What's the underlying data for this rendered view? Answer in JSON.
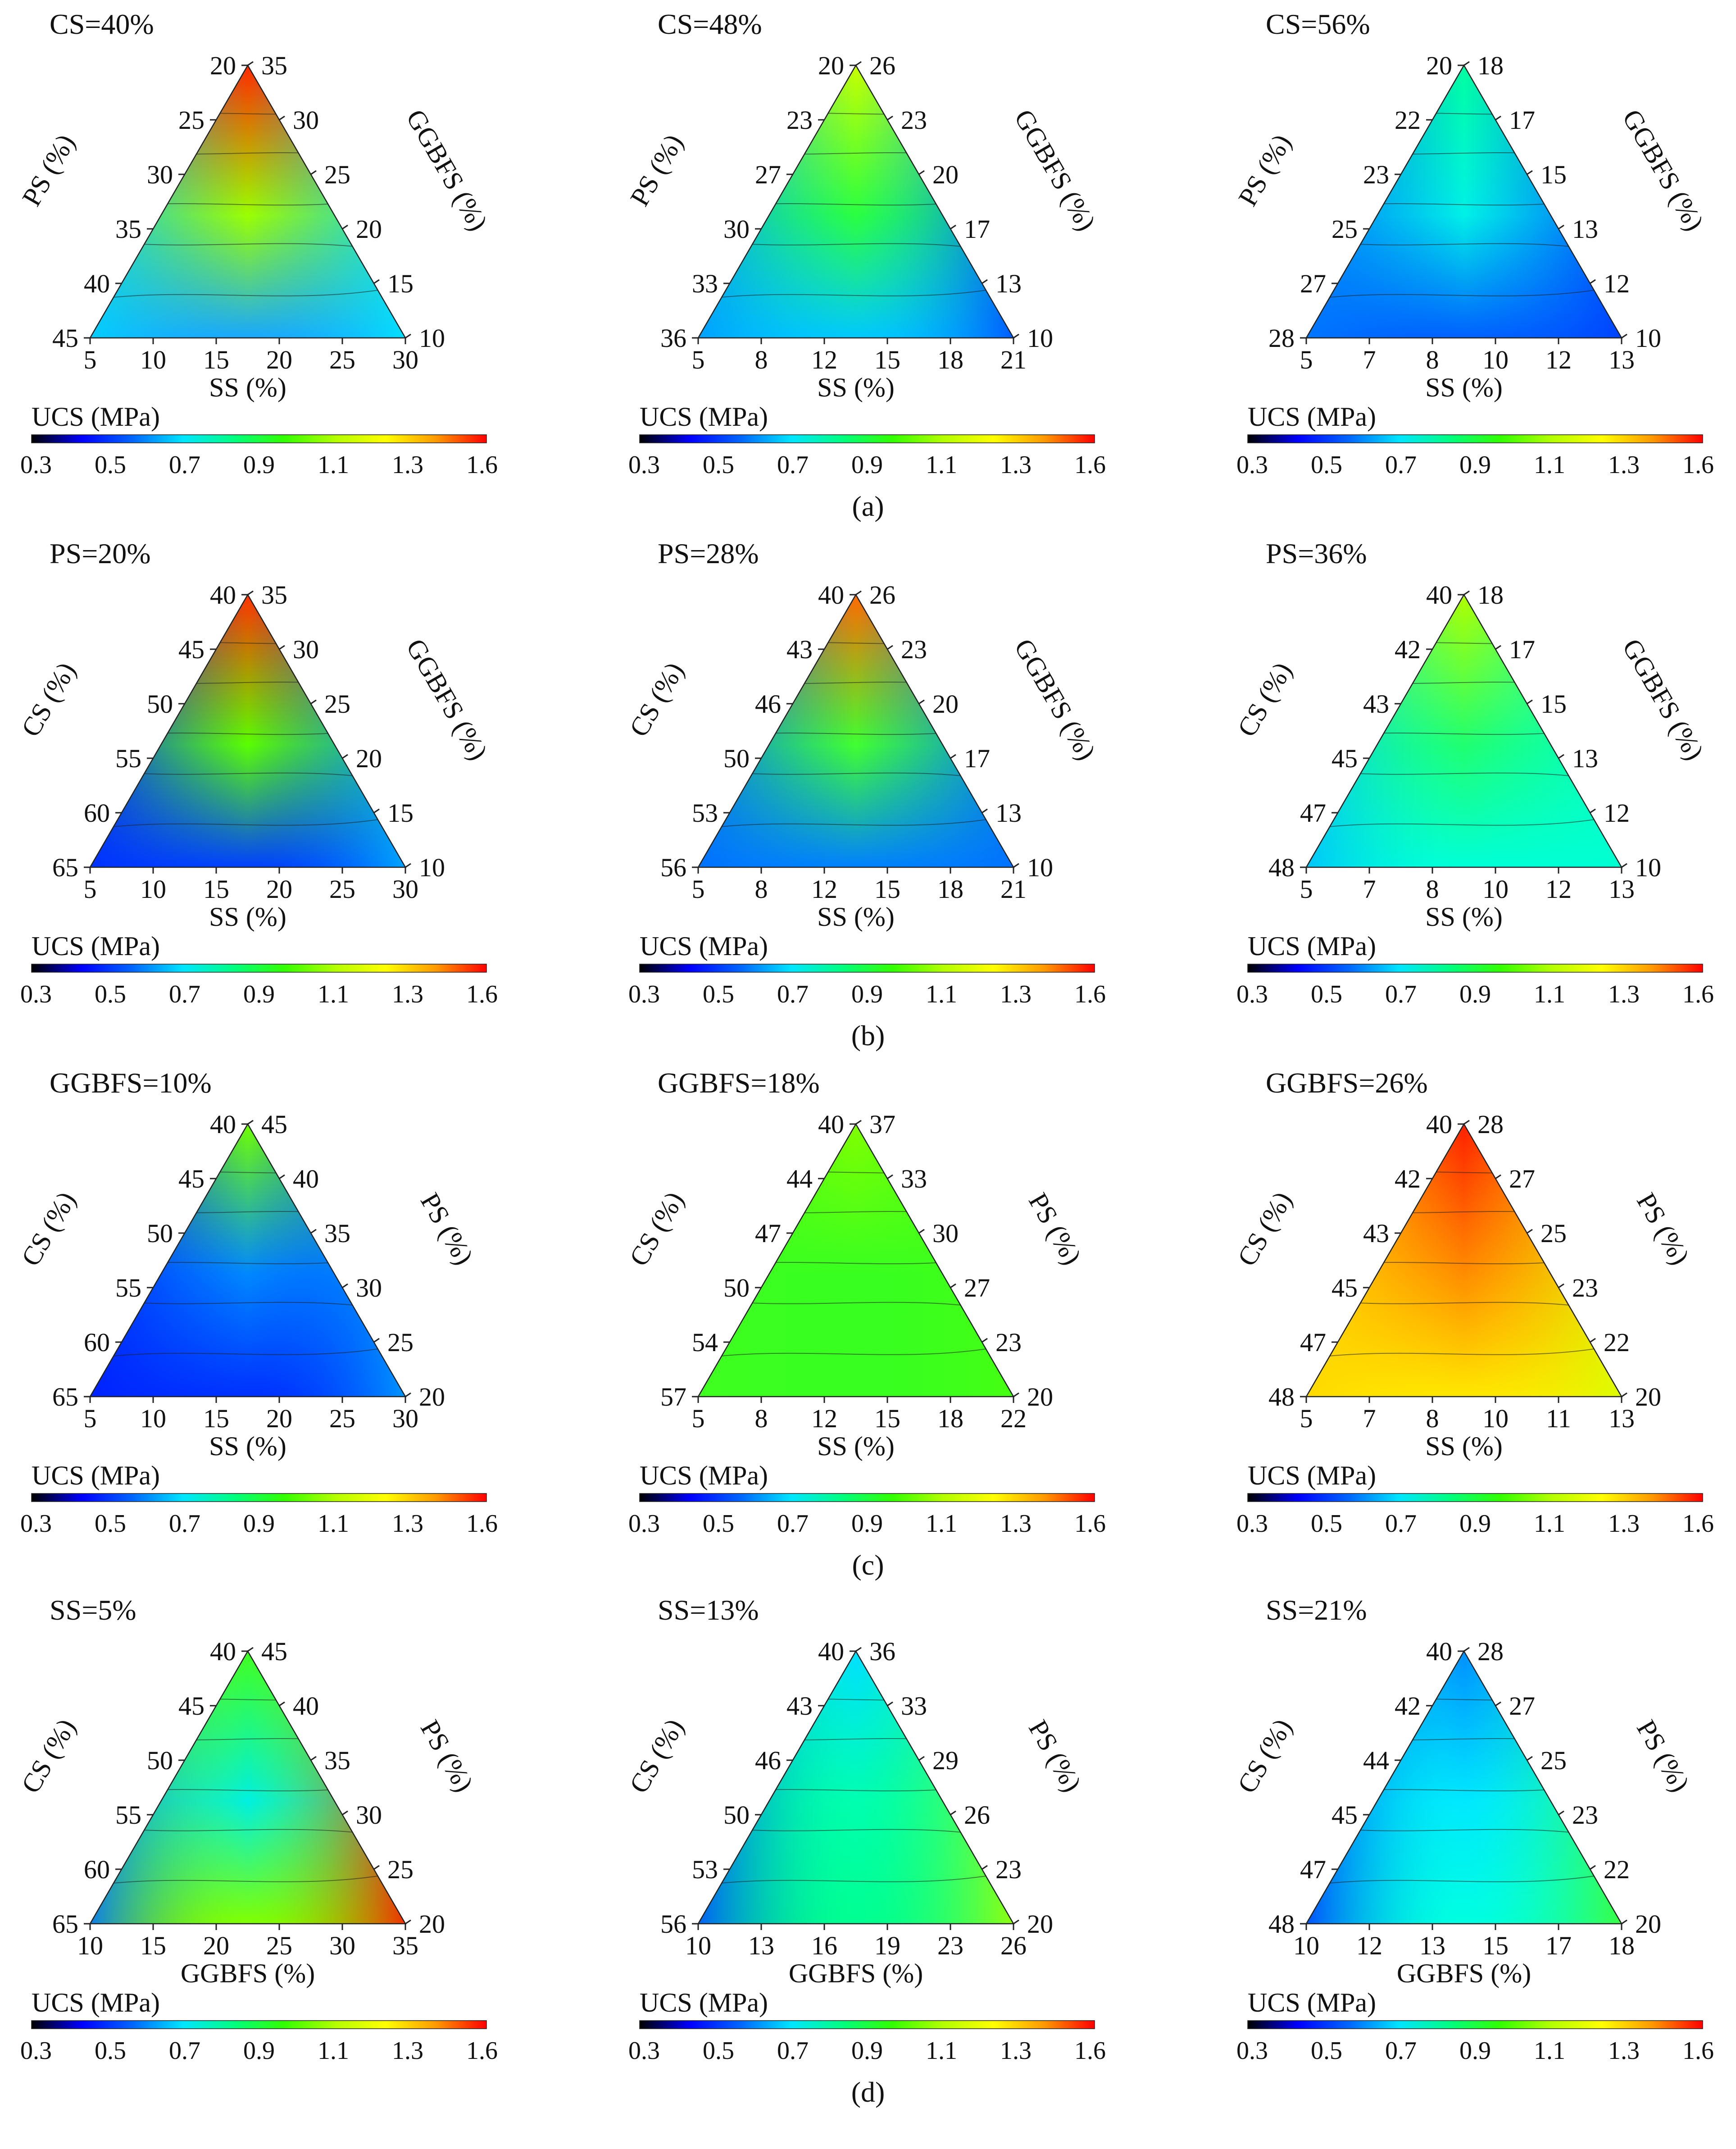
{
  "figure": {
    "colorbar": {
      "title": "UCS (MPa)",
      "ticks": [
        "0.3",
        "0.5",
        "0.7",
        "0.9",
        "1.1",
        "1.3",
        "1.6"
      ],
      "stops": [
        "#000000",
        "#0000ff",
        "#0066ff",
        "#00e5ff",
        "#00ff80",
        "#33ff00",
        "#b3ff00",
        "#ffff00",
        "#ff9900",
        "#ff0000"
      ]
    },
    "rows": [
      {
        "label": "(a)",
        "panels": [
          {
            "title": "CS=40%",
            "left_axis": "PS (%)",
            "right_axis": "GGBFS (%)",
            "bottom_axis": "SS (%)",
            "left_ticks": [
              "20",
              "25",
              "30",
              "35",
              "40",
              "45"
            ],
            "right_ticks": [
              "35",
              "30",
              "25",
              "20",
              "15",
              "10"
            ],
            "bottom_ticks": [
              "5",
              "10",
              "15",
              "20",
              "25",
              "30"
            ],
            "colors": {
              "apex": "#ff2a00",
              "mid": "#9bff00",
              "bl": "#00d2ff",
              "br": "#00e5ff",
              "bottom_mid": "#18a8ff"
            }
          },
          {
            "title": "CS=48%",
            "left_axis": "PS (%)",
            "right_axis": "GGBFS (%)",
            "bottom_axis": "SS (%)",
            "left_ticks": [
              "20",
              "23",
              "27",
              "30",
              "33",
              "36"
            ],
            "right_ticks": [
              "26",
              "23",
              "20",
              "17",
              "13",
              "10"
            ],
            "bottom_ticks": [
              "5",
              "8",
              "12",
              "15",
              "18",
              "21"
            ],
            "colors": {
              "apex": "#c8ff00",
              "mid": "#2aff40",
              "bl": "#009dff",
              "br": "#0050ff",
              "bottom_mid": "#00c8ff"
            }
          },
          {
            "title": "CS=56%",
            "left_axis": "PS (%)",
            "right_axis": "GGBFS (%)",
            "bottom_axis": "SS (%)",
            "left_ticks": [
              "20",
              "22",
              "23",
              "25",
              "27",
              "28"
            ],
            "right_ticks": [
              "18",
              "17",
              "15",
              "13",
              "12",
              "10"
            ],
            "bottom_ticks": [
              "5",
              "7",
              "8",
              "10",
              "12",
              "13"
            ],
            "colors": {
              "apex": "#00ffa0",
              "mid": "#00f0e8",
              "bl": "#0078ff",
              "br": "#0040ff",
              "bottom_mid": "#0060ff"
            }
          }
        ]
      },
      {
        "label": "(b)",
        "panels": [
          {
            "title": "PS=20%",
            "left_axis": "CS (%)",
            "right_axis": "GGBFS (%)",
            "bottom_axis": "SS (%)",
            "left_ticks": [
              "40",
              "45",
              "50",
              "55",
              "60",
              "65"
            ],
            "right_ticks": [
              "35",
              "30",
              "25",
              "20",
              "15",
              "10"
            ],
            "bottom_ticks": [
              "5",
              "10",
              "15",
              "20",
              "25",
              "30"
            ],
            "colors": {
              "apex": "#ff3300",
              "mid": "#5aff00",
              "bl": "#0030ff",
              "br": "#00b0ff",
              "bottom_mid": "#0040ff"
            }
          },
          {
            "title": "PS=28%",
            "left_axis": "CS (%)",
            "right_axis": "GGBFS (%)",
            "bottom_axis": "SS (%)",
            "left_ticks": [
              "40",
              "43",
              "46",
              "50",
              "53",
              "56"
            ],
            "right_ticks": [
              "26",
              "23",
              "20",
              "17",
              "13",
              "10"
            ],
            "bottom_ticks": [
              "5",
              "8",
              "12",
              "15",
              "18",
              "21"
            ],
            "colors": {
              "apex": "#ff6a00",
              "mid": "#40ff30",
              "bl": "#0070ff",
              "br": "#0070ff",
              "bottom_mid": "#0080ff"
            }
          },
          {
            "title": "PS=36%",
            "left_axis": "CS (%)",
            "right_axis": "GGBFS (%)",
            "bottom_axis": "SS (%)",
            "left_ticks": [
              "40",
              "42",
              "43",
              "45",
              "47",
              "48"
            ],
            "right_ticks": [
              "18",
              "17",
              "15",
              "13",
              "12",
              "10"
            ],
            "bottom_ticks": [
              "5",
              "7",
              "8",
              "10",
              "12",
              "13"
            ],
            "colors": {
              "apex": "#b0ff00",
              "mid": "#20ff70",
              "bl": "#00c0ff",
              "br": "#00ffd0",
              "bottom_mid": "#00ffd8"
            }
          }
        ]
      },
      {
        "label": "(c)",
        "panels": [
          {
            "title": "GGBFS=10%",
            "left_axis": "CS (%)",
            "right_axis": "PS (%)",
            "bottom_axis": "SS (%)",
            "left_ticks": [
              "40",
              "45",
              "50",
              "55",
              "60",
              "65"
            ],
            "right_ticks": [
              "45",
              "40",
              "35",
              "30",
              "25",
              "20"
            ],
            "bottom_ticks": [
              "5",
              "10",
              "15",
              "20",
              "25",
              "30"
            ],
            "colors": {
              "apex": "#70ff00",
              "mid": "#0088ff",
              "bl": "#0020ff",
              "br": "#00a0ff",
              "bottom_mid": "#0030ff"
            }
          },
          {
            "title": "GGBFS=18%",
            "left_axis": "CS (%)",
            "right_axis": "PS (%)",
            "bottom_axis": "SS (%)",
            "left_ticks": [
              "40",
              "44",
              "47",
              "50",
              "54",
              "57"
            ],
            "right_ticks": [
              "37",
              "33",
              "30",
              "27",
              "23",
              "20"
            ],
            "bottom_ticks": [
              "5",
              "8",
              "12",
              "15",
              "18",
              "22"
            ],
            "colors": {
              "apex": "#80ff00",
              "mid": "#38ff20",
              "bl": "#40ff20",
              "br": "#48ff10",
              "bottom_mid": "#38ff20"
            }
          },
          {
            "title": "GGBFS=26%",
            "left_axis": "CS (%)",
            "right_axis": "PS (%)",
            "bottom_axis": "SS (%)",
            "left_ticks": [
              "40",
              "42",
              "43",
              "45",
              "47",
              "48"
            ],
            "right_ticks": [
              "28",
              "27",
              "25",
              "23",
              "22",
              "20"
            ],
            "bottom_ticks": [
              "5",
              "7",
              "8",
              "10",
              "11",
              "13"
            ],
            "colors": {
              "apex": "#ff2000",
              "mid": "#ff8c00",
              "bl": "#ffd800",
              "br": "#d8ff00",
              "bottom_mid": "#ffe800"
            }
          }
        ]
      },
      {
        "label": "(d)",
        "panels": [
          {
            "title": "SS=5%",
            "left_axis": "CS (%)",
            "right_axis": "PS (%)",
            "bottom_axis": "GGBFS (%)",
            "left_ticks": [
              "40",
              "45",
              "50",
              "55",
              "60",
              "65"
            ],
            "right_ticks": [
              "45",
              "40",
              "35",
              "30",
              "25",
              "20"
            ],
            "bottom_ticks": [
              "10",
              "15",
              "20",
              "25",
              "30",
              "35"
            ],
            "colors": {
              "apex": "#40ff20",
              "mid": "#00f0e0",
              "bl": "#0070ff",
              "br": "#ff1a00",
              "bottom_mid": "#80ff00"
            }
          },
          {
            "title": "SS=13%",
            "left_axis": "CS (%)",
            "right_axis": "PS (%)",
            "bottom_axis": "GGBFS (%)",
            "left_ticks": [
              "40",
              "43",
              "46",
              "50",
              "53",
              "56"
            ],
            "right_ticks": [
              "36",
              "33",
              "29",
              "26",
              "23",
              "20"
            ],
            "bottom_ticks": [
              "10",
              "13",
              "16",
              "19",
              "23",
              "26"
            ],
            "colors": {
              "apex": "#00e0ff",
              "mid": "#00ffb0",
              "bl": "#0050ff",
              "br": "#a0ff00",
              "bottom_mid": "#00ff90"
            }
          },
          {
            "title": "SS=21%",
            "left_axis": "CS (%)",
            "right_axis": "PS (%)",
            "bottom_axis": "GGBFS (%)",
            "left_ticks": [
              "40",
              "42",
              "44",
              "45",
              "47",
              "48"
            ],
            "right_ticks": [
              "28",
              "27",
              "25",
              "23",
              "22",
              "20"
            ],
            "bottom_ticks": [
              "10",
              "12",
              "13",
              "15",
              "17",
              "18"
            ],
            "colors": {
              "apex": "#0090ff",
              "mid": "#00e8ff",
              "bl": "#0040ff",
              "br": "#40ff30",
              "bottom_mid": "#00ffe0"
            }
          }
        ]
      }
    ]
  }
}
